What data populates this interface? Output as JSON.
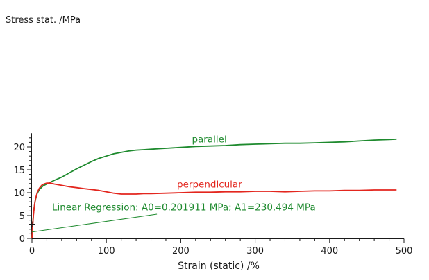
{
  "chart_data": {
    "type": "line",
    "ylabel": "Stress stat. /MPa",
    "xlabel": "Strain (static) /%",
    "xlim": [
      0,
      500
    ],
    "ylim": [
      0,
      23
    ],
    "xticks": [
      0,
      100,
      200,
      300,
      400,
      500
    ],
    "yticks": [
      0,
      5,
      10,
      15,
      20
    ],
    "grid": false,
    "legend": "inline labels",
    "colors": {
      "parallel": "#1e8a2e",
      "perpendicular": "#e3261e",
      "regression": "#1e8a2e",
      "axis": "#1a1a1a"
    },
    "series": [
      {
        "name": "parallel",
        "x": [
          0,
          1,
          2,
          3,
          4,
          5,
          7,
          10,
          15,
          20,
          25,
          30,
          40,
          50,
          60,
          70,
          80,
          90,
          100,
          110,
          120,
          130,
          140,
          150,
          160,
          170,
          180,
          190,
          200,
          220,
          240,
          260,
          280,
          300,
          320,
          340,
          360,
          380,
          400,
          420,
          440,
          460,
          480,
          490
        ],
        "y": [
          0,
          3.0,
          5.2,
          6.8,
          7.9,
          8.7,
          9.8,
          10.7,
          11.5,
          11.9,
          12.3,
          12.7,
          13.4,
          14.3,
          15.2,
          16.0,
          16.8,
          17.5,
          18.0,
          18.5,
          18.8,
          19.1,
          19.3,
          19.4,
          19.5,
          19.6,
          19.7,
          19.8,
          19.9,
          20.1,
          20.2,
          20.3,
          20.5,
          20.6,
          20.7,
          20.8,
          20.8,
          20.9,
          21.0,
          21.1,
          21.3,
          21.5,
          21.6,
          21.7
        ]
      },
      {
        "name": "perpendicular",
        "x": [
          0,
          1,
          2,
          3,
          4,
          5,
          7,
          10,
          13,
          16,
          20,
          25,
          30,
          40,
          50,
          60,
          70,
          80,
          90,
          100,
          110,
          120,
          130,
          140,
          150,
          160,
          180,
          200,
          220,
          240,
          260,
          280,
          300,
          320,
          340,
          360,
          380,
          400,
          420,
          440,
          460,
          480,
          490
        ],
        "y": [
          0,
          2.8,
          5.0,
          6.7,
          7.9,
          8.8,
          10.0,
          11.0,
          11.6,
          11.9,
          12.1,
          12.1,
          11.9,
          11.6,
          11.3,
          11.1,
          10.9,
          10.7,
          10.5,
          10.2,
          9.9,
          9.7,
          9.7,
          9.7,
          9.8,
          9.8,
          9.9,
          10.0,
          10.1,
          10.1,
          10.2,
          10.2,
          10.3,
          10.3,
          10.2,
          10.3,
          10.4,
          10.4,
          10.5,
          10.5,
          10.6,
          10.6,
          10.6
        ]
      }
    ],
    "regression": {
      "label": "Linear Regression: A0=0.201911 MPa; A1=230.494 MPa",
      "line_x": [
        0,
        168
      ],
      "line_y": [
        1.4,
        5.3
      ]
    },
    "annotations": [
      {
        "text": "parallel",
        "series": "parallel",
        "at_x": 215,
        "at_y": 21.0
      },
      {
        "text": "perpendicular",
        "series": "perpendicular",
        "at_x": 195,
        "at_y": 11.1
      },
      {
        "text": "Linear Regression: A0=0.201911 MPa; A1=230.494 MPa",
        "series": "regression",
        "at_x": 27,
        "at_y": 6.1
      }
    ],
    "marker": {
      "x": 0,
      "y": 3.1,
      "symbol": "+"
    }
  }
}
